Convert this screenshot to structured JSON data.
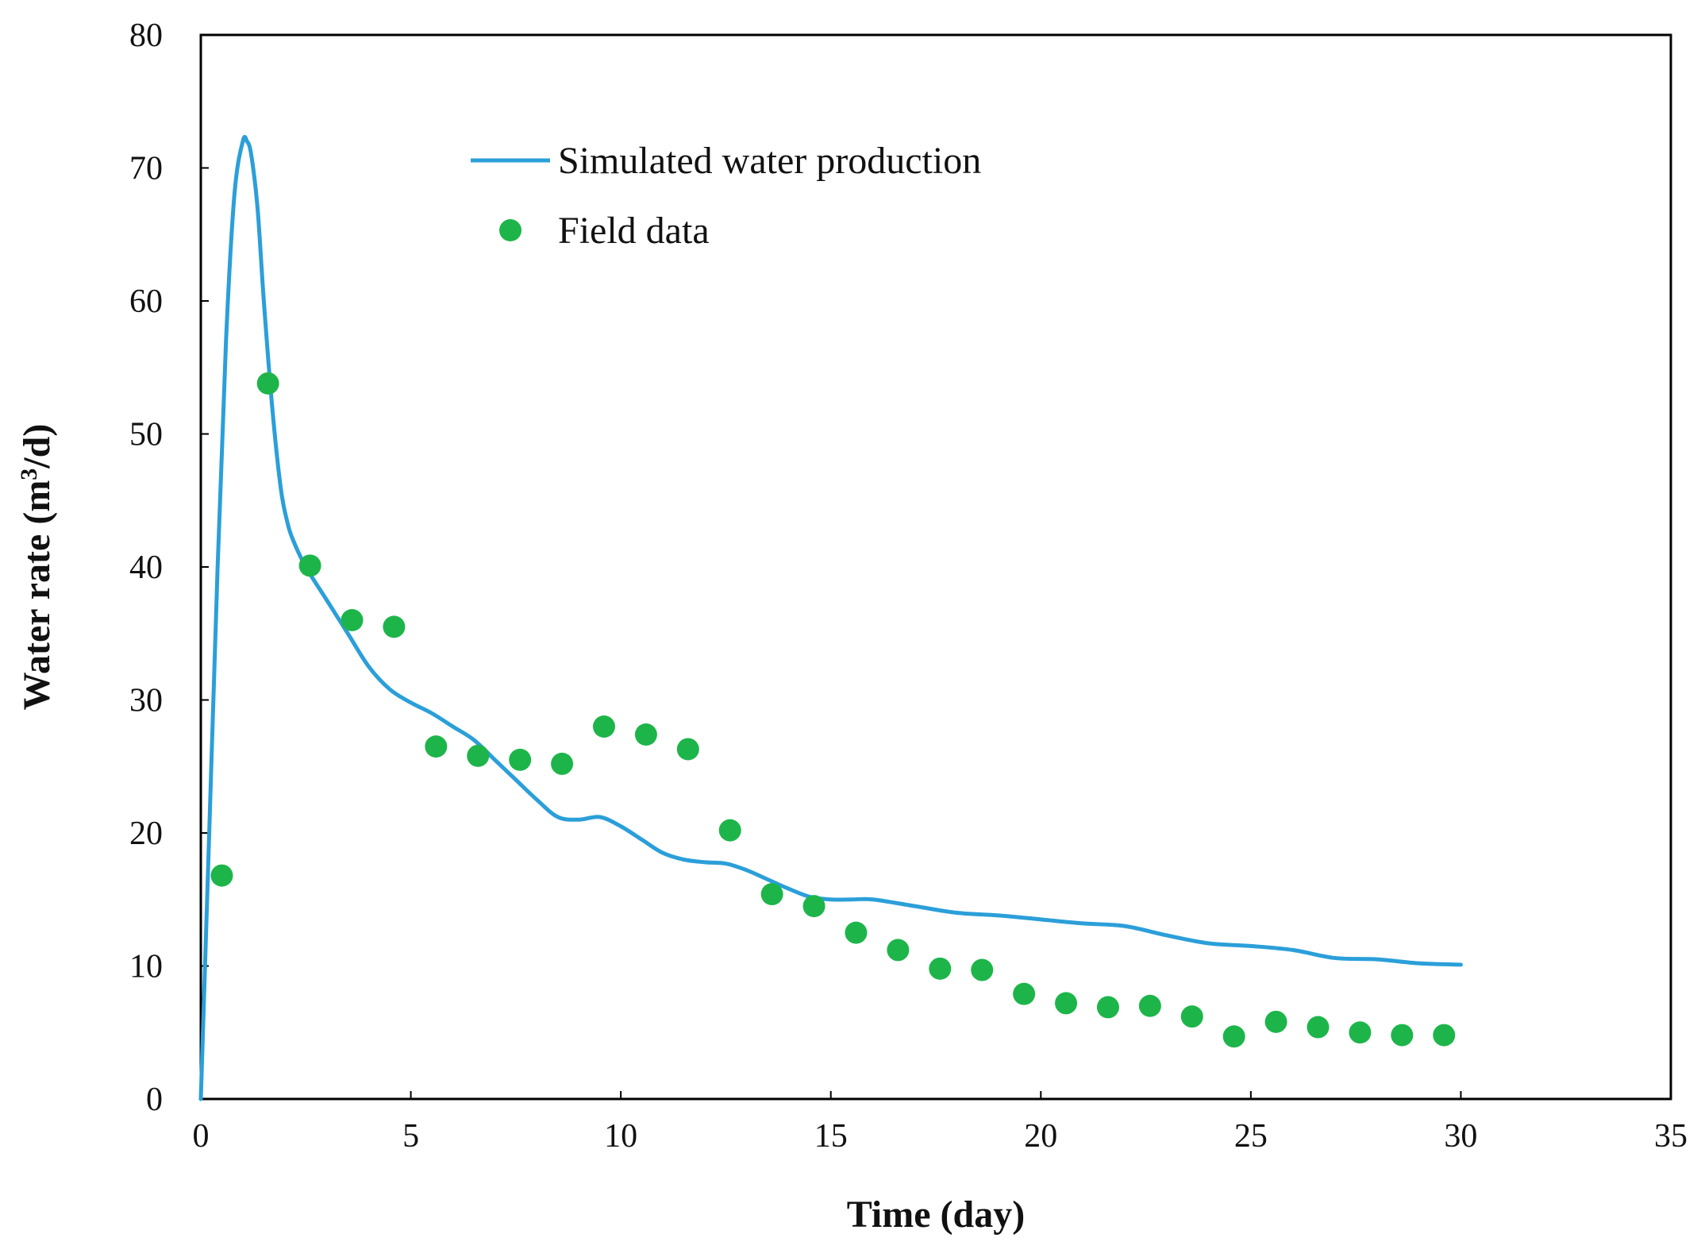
{
  "chart_data": {
    "type": "line",
    "title": "",
    "xlabel": "Time (day)",
    "ylabel_parts": {
      "main": "Water rate (m",
      "sup": "3",
      "end": "/d)"
    },
    "xlim": [
      0,
      35
    ],
    "ylim": [
      0,
      80
    ],
    "xticks": [
      "0",
      "5",
      "10",
      "15",
      "20",
      "25",
      "30",
      "35"
    ],
    "yticks": [
      "0",
      "10",
      "20",
      "30",
      "40",
      "50",
      "60",
      "70",
      "80"
    ],
    "grid": false,
    "legend": {
      "placement": "top-center",
      "entries": [
        "Simulated water production",
        "Field data"
      ]
    },
    "series": [
      {
        "name": "Simulated water production",
        "kind": "line",
        "color": "#2b9fd9",
        "x": [
          0,
          0.2,
          0.4,
          0.6,
          0.8,
          1.0,
          1.1,
          1.2,
          1.35,
          1.5,
          1.7,
          1.9,
          2.05,
          2.2,
          2.5,
          3.0,
          3.5,
          4.0,
          4.5,
          5.0,
          5.5,
          6.0,
          6.5,
          7.0,
          7.5,
          8.0,
          8.5,
          9.0,
          9.5,
          10.0,
          10.5,
          11.0,
          11.5,
          12.0,
          12.5,
          13.0,
          13.5,
          14.0,
          14.5,
          15.0,
          15.5,
          16.0,
          17.0,
          18.0,
          19.0,
          20.0,
          21.0,
          22.0,
          23.0,
          24.0,
          25.0,
          26.0,
          27.0,
          28.0,
          29.0,
          30.0
        ],
        "y": [
          0,
          20,
          40,
          57,
          68,
          72,
          72,
          71,
          67,
          60,
          52,
          46,
          43.5,
          42,
          40,
          37.5,
          35,
          32.5,
          30.8,
          29.8,
          29,
          28,
          27,
          25.5,
          24,
          22.5,
          21.2,
          21,
          21.2,
          20.5,
          19.5,
          18.5,
          18,
          17.8,
          17.7,
          17.2,
          16.5,
          15.8,
          15.2,
          15,
          15,
          15,
          14.5,
          14,
          13.8,
          13.5,
          13.2,
          13,
          12.3,
          11.7,
          11.5,
          11.2,
          10.6,
          10.5,
          10.2,
          10.1
        ]
      },
      {
        "name": "Field data",
        "kind": "scatter",
        "color": "#1db54a",
        "x": [
          0.5,
          1.6,
          2.6,
          3.6,
          4.6,
          5.6,
          6.6,
          7.6,
          8.6,
          9.6,
          10.6,
          11.6,
          12.6,
          13.6,
          14.6,
          15.6,
          16.6,
          17.6,
          18.6,
          19.6,
          20.6,
          21.6,
          22.6,
          23.6,
          24.6,
          25.6,
          26.6,
          27.6,
          28.6,
          29.6
        ],
        "y": [
          16.8,
          53.8,
          40.1,
          36,
          35.5,
          26.5,
          25.8,
          25.5,
          25.2,
          28,
          27.4,
          26.3,
          20.2,
          15.4,
          14.5,
          12.5,
          11.2,
          9.8,
          9.7,
          7.9,
          7.2,
          6.9,
          7.0,
          6.2,
          4.7,
          5.8,
          5.4,
          5.0,
          4.8,
          4.8
        ]
      }
    ]
  }
}
